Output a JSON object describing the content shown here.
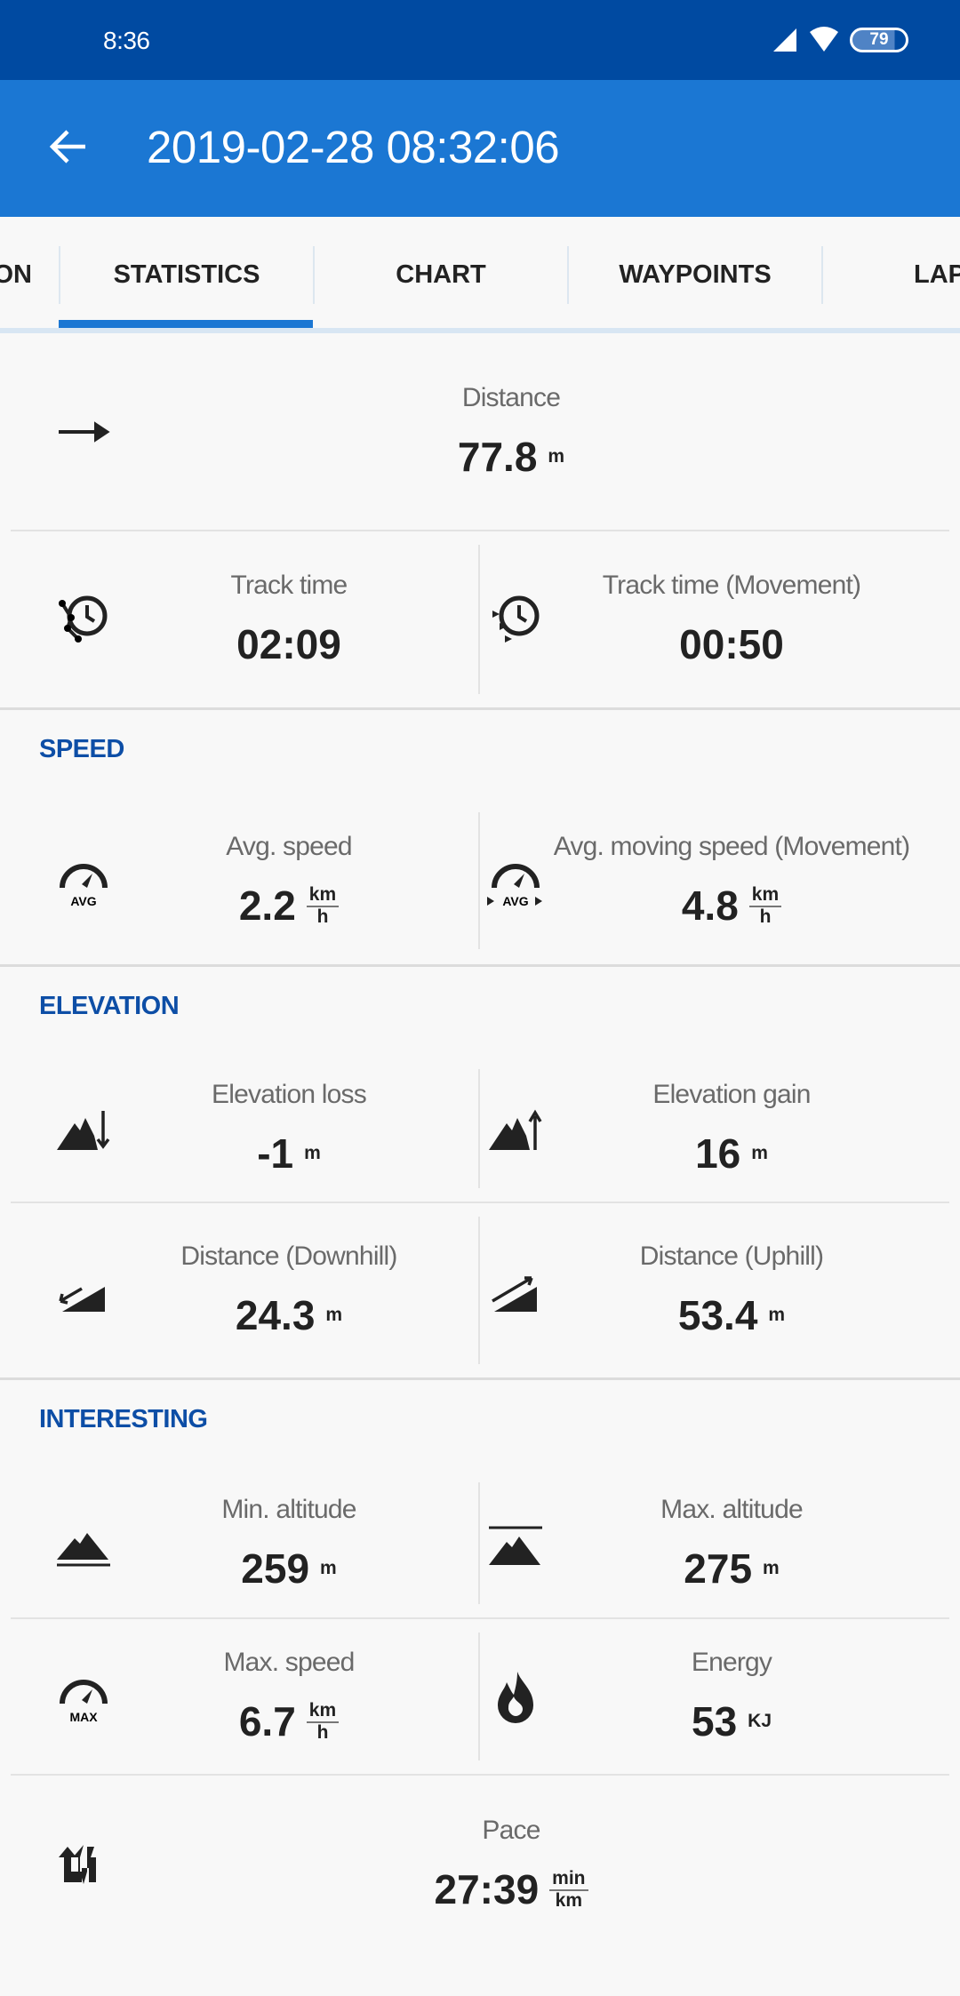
{
  "status_bar": {
    "time": "8:36",
    "battery": "79"
  },
  "app_bar": {
    "title": "2019-02-28 08:32:06",
    "back_icon": "arrow-left-icon"
  },
  "tabs": [
    {
      "label": "ON"
    },
    {
      "label": "STATISTICS",
      "active": true
    },
    {
      "label": "CHART"
    },
    {
      "label": "WAYPOINTS"
    },
    {
      "label": "LAP"
    }
  ],
  "colors": {
    "status_bar": "#004aa1",
    "app_bar": "#1b77d3",
    "accent": "#1b77d3",
    "section_header": "#0d4ea6"
  },
  "distance": {
    "label": "Distance",
    "value": "77.8",
    "unit": "m",
    "icon": "arrow-right-icon"
  },
  "track_time": {
    "label": "Track time",
    "value": "02:09",
    "icon": "clock-track-icon"
  },
  "track_time_movement": {
    "label": "Track time (Movement)",
    "value": "00:50",
    "icon": "clock-movement-icon"
  },
  "speed": {
    "header": "SPEED",
    "avg": {
      "label": "Avg. speed",
      "value": "2.2",
      "unit_num": "km",
      "unit_den": "h",
      "icon": "speedometer-avg-icon",
      "icon_text": "AVG"
    },
    "avg_moving": {
      "label": "Avg. moving speed (Movement)",
      "value": "4.8",
      "unit_num": "km",
      "unit_den": "h",
      "icon": "speedometer-avg-moving-icon",
      "icon_text": "AVG"
    }
  },
  "elevation": {
    "header": "ELEVATION",
    "loss": {
      "label": "Elevation loss",
      "value": "-1",
      "unit": "m",
      "icon": "mountain-down-icon"
    },
    "gain": {
      "label": "Elevation gain",
      "value": "16",
      "unit": "m",
      "icon": "mountain-up-icon"
    },
    "downhill": {
      "label": "Distance (Downhill)",
      "value": "24.3",
      "unit": "m",
      "icon": "slope-down-icon"
    },
    "uphill": {
      "label": "Distance (Uphill)",
      "value": "53.4",
      "unit": "m",
      "icon": "slope-up-icon"
    }
  },
  "interesting": {
    "header": "INTERESTING",
    "min_alt": {
      "label": "Min. altitude",
      "value": "259",
      "unit": "m",
      "icon": "mountain-min-icon"
    },
    "max_alt": {
      "label": "Max. altitude",
      "value": "275",
      "unit": "m",
      "icon": "mountain-max-icon"
    },
    "max_speed": {
      "label": "Max. speed",
      "value": "6.7",
      "unit_num": "km",
      "unit_den": "h",
      "icon": "speedometer-max-icon",
      "icon_text": "MAX"
    },
    "energy": {
      "label": "Energy",
      "value": "53",
      "unit": "KJ",
      "icon": "flame-icon"
    },
    "pace": {
      "label": "Pace",
      "value": "27:39",
      "unit_num": "min",
      "unit_den": "km",
      "icon": "pace-arrows-icon"
    }
  }
}
